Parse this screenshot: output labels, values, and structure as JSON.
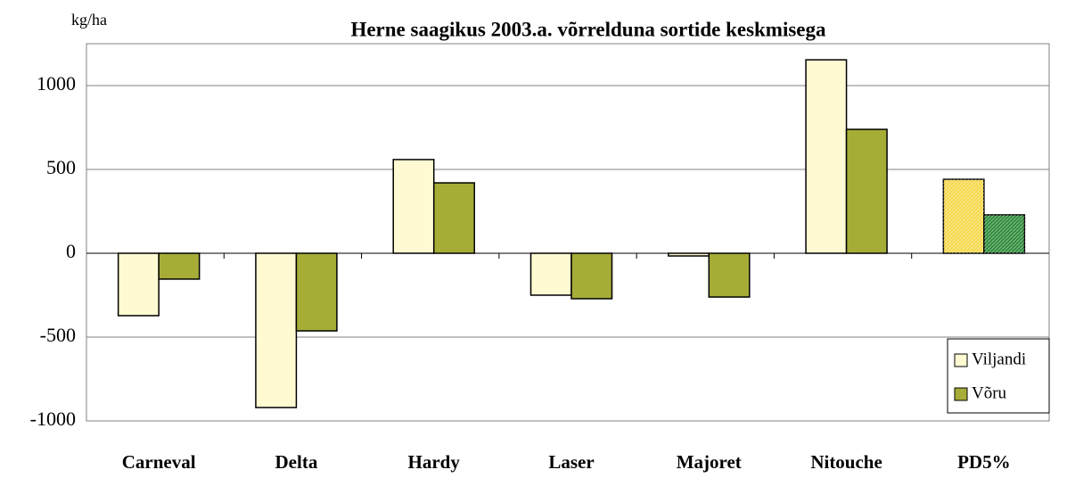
{
  "chart_data": {
    "type": "bar",
    "title": "Herne saagikus 2003.a. võrrelduna sortide keskmisega",
    "y_unit": "kg/ha",
    "categories": [
      "Carneval",
      "Delta",
      "Hardy",
      "Laser",
      "Majoret",
      "Nitouche",
      "PD5%"
    ],
    "series": [
      {
        "name": "Viljandi",
        "color": "#fffad2",
        "colors": [
          "#fffad2",
          "#fffad2",
          "#fffad2",
          "#fffad2",
          "#fffad2",
          "#fffad2",
          "#f5d84a"
        ],
        "values": [
          -372,
          -920,
          559,
          -250,
          -16,
          1154,
          441
        ]
      },
      {
        "name": "Võru",
        "color": "#a6ad37",
        "colors": [
          "#a6ad37",
          "#a6ad37",
          "#a6ad37",
          "#a6ad37",
          "#a6ad37",
          "#a6ad37",
          "#2e8a3a"
        ],
        "values": [
          -154,
          -463,
          420,
          -271,
          -261,
          739,
          229
        ]
      }
    ],
    "ylim": [
      -1000,
      1250
    ],
    "yticks": [
      -1000,
      -500,
      0,
      500,
      1000
    ],
    "grid": true,
    "legend": "lower right"
  }
}
